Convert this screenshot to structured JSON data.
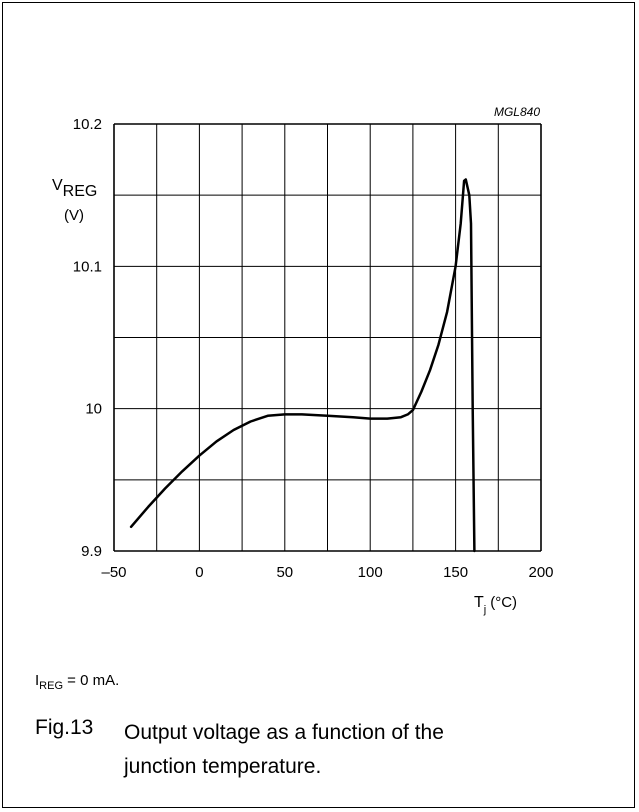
{
  "chart_data": {
    "type": "line",
    "code": "MGL840",
    "ylabel_main": "V",
    "ylabel_sub": "REG",
    "ylabel_unit": "(V)",
    "xlabel_main": "T",
    "xlabel_sub": "j",
    "xlabel_unit": "(°C)",
    "xlim": [
      -50,
      200
    ],
    "ylim": [
      9.9,
      10.2
    ],
    "x_ticks": [
      -50,
      0,
      50,
      100,
      150,
      200
    ],
    "x_tick_labels": [
      "–50",
      "0",
      "50",
      "100",
      "150",
      "200"
    ],
    "y_ticks": [
      9.9,
      10.0,
      10.1,
      10.2
    ],
    "y_tick_labels": [
      "9.9",
      "10",
      "10.1",
      "10.2"
    ],
    "x_grid_step": 25,
    "y_grid_step": 0.05,
    "grid": true,
    "series": [
      {
        "x": [
          -40,
          -30,
          -20,
          -10,
          0,
          10,
          20,
          30,
          40,
          50,
          60,
          75,
          90,
          100,
          110,
          118,
          122,
          125,
          130,
          135,
          140,
          145,
          150,
          153,
          155,
          156,
          158,
          159,
          160,
          161
        ],
        "y": [
          9.917,
          9.931,
          9.944,
          9.956,
          9.967,
          9.977,
          9.985,
          9.991,
          9.995,
          9.996,
          9.996,
          9.995,
          9.994,
          9.993,
          9.993,
          9.994,
          9.996,
          9.999,
          10.012,
          10.027,
          10.045,
          10.068,
          10.1,
          10.13,
          10.16,
          10.161,
          10.15,
          10.13,
          10.0,
          9.9
        ]
      }
    ]
  },
  "note": {
    "main": "I",
    "sub": "REG",
    "rest": " = 0 mA."
  },
  "caption": {
    "number": "Fig.13",
    "text": "Output voltage as a function of the junction temperature."
  }
}
